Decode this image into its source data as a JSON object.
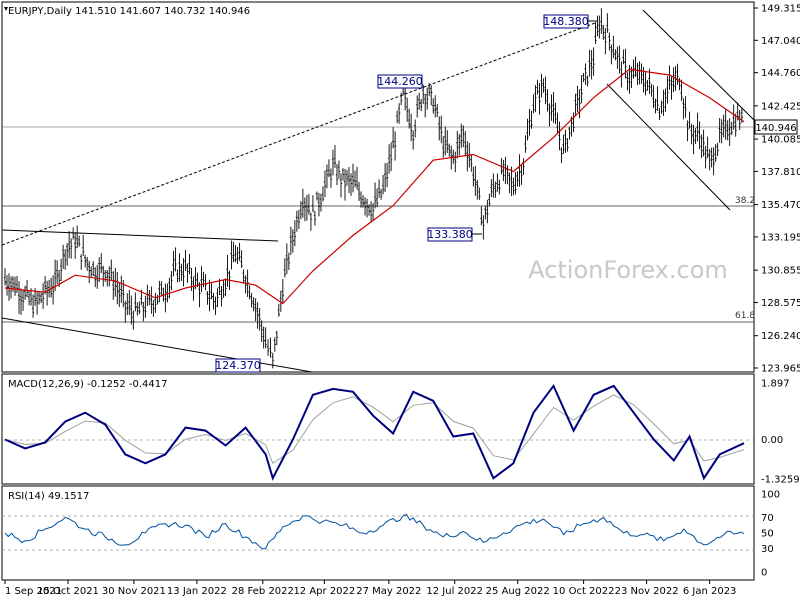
{
  "chart_data": {
    "type": "line",
    "title": "EURJPY,Daily 141.510 141.607 140.732 140.946",
    "symbol": "EURJPY",
    "timeframe": "Daily",
    "ohlc_header": "141.510 141.607 140.732 140.946",
    "watermark": "ActionForex.com",
    "last_price": "140.946",
    "price_axis_ticks": [
      "149.315",
      "147.040",
      "144.760",
      "142.425",
      "140.085",
      "137.810",
      "135.470",
      "133.195",
      "130.855",
      "128.575",
      "126.240",
      "123.965"
    ],
    "macd_axis_ticks": [
      "1.897",
      "0.00",
      "-1.3259"
    ],
    "rsi_axis_ticks": [
      "100",
      "70",
      "50",
      "30",
      "0"
    ],
    "x_axis_labels": [
      "1 Sep 2021",
      "15 Oct 2021",
      "30 Nov 2021",
      "13 Jan 2022",
      "28 Feb 2022",
      "12 Apr 2022",
      "27 May 2022",
      "12 Jul 2022",
      "25 Aug 2022",
      "10 Oct 2022",
      "23 Nov 2022",
      "6 Jan 2023"
    ],
    "annotations": {
      "high_1": "148.380",
      "high_2": "144.260",
      "low_1": "133.380",
      "low_2": "124.370",
      "fib_1": "38.2",
      "fib_2": "61.8"
    },
    "price_series": [
      {
        "x": "1 Sep 2021",
        "y": 130.2
      },
      {
        "x": "8 Sep 2021",
        "y": 129.8
      },
      {
        "x": "15 Sep 2021",
        "y": 129.0
      },
      {
        "x": "22 Sep 2021",
        "y": 128.4
      },
      {
        "x": "29 Sep 2021",
        "y": 129.3
      },
      {
        "x": "6 Oct 2021",
        "y": 129.9
      },
      {
        "x": "13 Oct 2021",
        "y": 132.3
      },
      {
        "x": "20 Oct 2021",
        "y": 133.0
      },
      {
        "x": "27 Oct 2021",
        "y": 131.6
      },
      {
        "x": "3 Nov 2021",
        "y": 130.8
      },
      {
        "x": "10 Nov 2021",
        "y": 131.0
      },
      {
        "x": "17 Nov 2021",
        "y": 129.9
      },
      {
        "x": "24 Nov 2021",
        "y": 128.4
      },
      {
        "x": "1 Dec 2021",
        "y": 127.8
      },
      {
        "x": "8 Dec 2021",
        "y": 128.4
      },
      {
        "x": "15 Dec 2021",
        "y": 128.9
      },
      {
        "x": "22 Dec 2021",
        "y": 129.4
      },
      {
        "x": "29 Dec 2021",
        "y": 130.9
      },
      {
        "x": "5 Jan 2022",
        "y": 131.0
      },
      {
        "x": "12 Jan 2022",
        "y": 130.0
      },
      {
        "x": "19 Jan 2022",
        "y": 129.5
      },
      {
        "x": "26 Jan 2022",
        "y": 128.7
      },
      {
        "x": "2 Feb 2022",
        "y": 130.2
      },
      {
        "x": "9 Feb 2022",
        "y": 132.0
      },
      {
        "x": "16 Feb 2022",
        "y": 130.5
      },
      {
        "x": "23 Feb 2022",
        "y": 128.4
      },
      {
        "x": "2 Mar 2022",
        "y": 125.8
      },
      {
        "x": "7 Mar 2022",
        "y": 124.37
      },
      {
        "x": "14 Mar 2022",
        "y": 129.8
      },
      {
        "x": "21 Mar 2022",
        "y": 133.2
      },
      {
        "x": "28 Mar 2022",
        "y": 136.0
      },
      {
        "x": "4 Apr 2022",
        "y": 134.8
      },
      {
        "x": "11 Apr 2022",
        "y": 136.5
      },
      {
        "x": "18 Apr 2022",
        "y": 138.2
      },
      {
        "x": "25 Apr 2022",
        "y": 137.2
      },
      {
        "x": "2 May 2022",
        "y": 137.0
      },
      {
        "x": "9 May 2022",
        "y": 136.0
      },
      {
        "x": "16 May 2022",
        "y": 135.2
      },
      {
        "x": "23 May 2022",
        "y": 136.5
      },
      {
        "x": "30 May 2022",
        "y": 139.5
      },
      {
        "x": "6 Jun 2022",
        "y": 143.2
      },
      {
        "x": "13 Jun 2022",
        "y": 140.8
      },
      {
        "x": "20 Jun 2022",
        "y": 143.5
      },
      {
        "x": "27 Jun 2022",
        "y": 142.8
      },
      {
        "x": "4 Jul 2022",
        "y": 139.8
      },
      {
        "x": "11 Jul 2022",
        "y": 138.7
      },
      {
        "x": "18 Jul 2022",
        "y": 140.5
      },
      {
        "x": "25 Jul 2022",
        "y": 137.8
      },
      {
        "x": "1 Aug 2022",
        "y": 134.2
      },
      {
        "x": "8 Aug 2022",
        "y": 136.7
      },
      {
        "x": "15 Aug 2022",
        "y": 137.7
      },
      {
        "x": "22 Aug 2022",
        "y": 136.8
      },
      {
        "x": "29 Aug 2022",
        "y": 138.6
      },
      {
        "x": "5 Sep 2022",
        "y": 142.6
      },
      {
        "x": "12 Sep 2022",
        "y": 143.9
      },
      {
        "x": "19 Sep 2022",
        "y": 141.8
      },
      {
        "x": "26 Sep 2022",
        "y": 139.2
      },
      {
        "x": "3 Oct 2022",
        "y": 141.6
      },
      {
        "x": "10 Oct 2022",
        "y": 144.0
      },
      {
        "x": "17 Oct 2022",
        "y": 145.8
      },
      {
        "x": "21 Oct 2022",
        "y": 148.38
      },
      {
        "x": "28 Oct 2022",
        "y": 147.2
      },
      {
        "x": "4 Nov 2022",
        "y": 145.5
      },
      {
        "x": "11 Nov 2022",
        "y": 144.5
      },
      {
        "x": "18 Nov 2022",
        "y": 144.6
      },
      {
        "x": "25 Nov 2022",
        "y": 143.8
      },
      {
        "x": "2 Dec 2022",
        "y": 142.3
      },
      {
        "x": "9 Dec 2022",
        "y": 143.7
      },
      {
        "x": "16 Dec 2022",
        "y": 144.5
      },
      {
        "x": "23 Dec 2022",
        "y": 140.6
      },
      {
        "x": "30 Dec 2022",
        "y": 140.4
      },
      {
        "x": "6 Jan 2023",
        "y": 138.4
      },
      {
        "x": "13 Jan 2023",
        "y": 140.1
      },
      {
        "x": "20 Jan 2023",
        "y": 141.1
      },
      {
        "x": "27 Jan 2023",
        "y": 141.6
      },
      {
        "x": "30 Jan 2023",
        "y": 140.946
      }
    ],
    "ma_series": [
      {
        "x": "1 Sep 2021",
        "y": 129.6
      },
      {
        "x": "29 Sep 2021",
        "y": 129.3
      },
      {
        "x": "20 Oct 2021",
        "y": 130.5
      },
      {
        "x": "17 Nov 2021",
        "y": 130.1
      },
      {
        "x": "15 Dec 2021",
        "y": 128.9
      },
      {
        "x": "5 Jan 2022",
        "y": 129.6
      },
      {
        "x": "2 Feb 2022",
        "y": 130.2
      },
      {
        "x": "23 Feb 2022",
        "y": 129.8
      },
      {
        "x": "14 Mar 2022",
        "y": 128.5
      },
      {
        "x": "4 Apr 2022",
        "y": 130.8
      },
      {
        "x": "2 May 2022",
        "y": 133.3
      },
      {
        "x": "30 May 2022",
        "y": 135.4
      },
      {
        "x": "27 Jun 2022",
        "y": 138.6
      },
      {
        "x": "25 Jul 2022",
        "y": 139.0
      },
      {
        "x": "22 Aug 2022",
        "y": 137.8
      },
      {
        "x": "19 Sep 2022",
        "y": 140.2
      },
      {
        "x": "17 Oct 2022",
        "y": 143.0
      },
      {
        "x": "11 Nov 2022",
        "y": 145.0
      },
      {
        "x": "9 Dec 2022",
        "y": 144.6
      },
      {
        "x": "6 Jan 2023",
        "y": 143.0
      },
      {
        "x": "30 Jan 2023",
        "y": 141.3
      }
    ],
    "macd_series": [
      {
        "x": "1 Sep 2021",
        "y": 0.0
      },
      {
        "x": "15 Sep 2021",
        "y": -0.3
      },
      {
        "x": "29 Sep 2021",
        "y": -0.1
      },
      {
        "x": "13 Oct 2021",
        "y": 0.6
      },
      {
        "x": "27 Oct 2021",
        "y": 0.9
      },
      {
        "x": "10 Nov 2021",
        "y": 0.5
      },
      {
        "x": "24 Nov 2021",
        "y": -0.5
      },
      {
        "x": "8 Dec 2021",
        "y": -0.8
      },
      {
        "x": "22 Dec 2021",
        "y": -0.5
      },
      {
        "x": "5 Jan 2022",
        "y": 0.4
      },
      {
        "x": "19 Jan 2022",
        "y": 0.3
      },
      {
        "x": "2 Feb 2022",
        "y": -0.2
      },
      {
        "x": "16 Feb 2022",
        "y": 0.4
      },
      {
        "x": "2 Mar 2022",
        "y": -0.5
      },
      {
        "x": "7 Mar 2022",
        "y": -1.3
      },
      {
        "x": "21 Mar 2022",
        "y": 0.0
      },
      {
        "x": "4 Apr 2022",
        "y": 1.5
      },
      {
        "x": "18 Apr 2022",
        "y": 1.7
      },
      {
        "x": "2 May 2022",
        "y": 1.6
      },
      {
        "x": "16 May 2022",
        "y": 0.8
      },
      {
        "x": "30 May 2022",
        "y": 0.2
      },
      {
        "x": "13 Jun 2022",
        "y": 1.6
      },
      {
        "x": "27 Jun 2022",
        "y": 1.3
      },
      {
        "x": "11 Jul 2022",
        "y": 0.1
      },
      {
        "x": "25 Jul 2022",
        "y": 0.2
      },
      {
        "x": "8 Aug 2022",
        "y": -1.3
      },
      {
        "x": "22 Aug 2022",
        "y": -0.8
      },
      {
        "x": "5 Sep 2022",
        "y": 0.9
      },
      {
        "x": "19 Sep 2022",
        "y": 1.8
      },
      {
        "x": "3 Oct 2022",
        "y": 0.3
      },
      {
        "x": "17 Oct 2022",
        "y": 1.5
      },
      {
        "x": "31 Oct 2022",
        "y": 1.8
      },
      {
        "x": "14 Nov 2022",
        "y": 0.9
      },
      {
        "x": "28 Nov 2022",
        "y": 0.0
      },
      {
        "x": "12 Dec 2022",
        "y": -0.7
      },
      {
        "x": "23 Dec 2022",
        "y": 0.1
      },
      {
        "x": "2 Jan 2023",
        "y": -1.3
      },
      {
        "x": "13 Jan 2023",
        "y": -0.5
      },
      {
        "x": "30 Jan 2023",
        "y": -0.1252
      }
    ],
    "rsi_series": [
      {
        "x": "1 Sep 2021",
        "y": 50
      },
      {
        "x": "15 Sep 2021",
        "y": 40
      },
      {
        "x": "29 Sep 2021",
        "y": 55
      },
      {
        "x": "13 Oct 2021",
        "y": 70
      },
      {
        "x": "27 Oct 2021",
        "y": 55
      },
      {
        "x": "10 Nov 2021",
        "y": 45
      },
      {
        "x": "24 Nov 2021",
        "y": 35
      },
      {
        "x": "8 Dec 2021",
        "y": 50
      },
      {
        "x": "22 Dec 2021",
        "y": 62
      },
      {
        "x": "5 Jan 2022",
        "y": 60
      },
      {
        "x": "19 Jan 2022",
        "y": 45
      },
      {
        "x": "2 Feb 2022",
        "y": 62
      },
      {
        "x": "16 Feb 2022",
        "y": 45
      },
      {
        "x": "2 Mar 2022",
        "y": 30
      },
      {
        "x": "14 Mar 2022",
        "y": 58
      },
      {
        "x": "28 Mar 2022",
        "y": 72
      },
      {
        "x": "11 Apr 2022",
        "y": 65
      },
      {
        "x": "25 Apr 2022",
        "y": 60
      },
      {
        "x": "9 May 2022",
        "y": 50
      },
      {
        "x": "23 May 2022",
        "y": 60
      },
      {
        "x": "6 Jun 2022",
        "y": 72
      },
      {
        "x": "20 Jun 2022",
        "y": 60
      },
      {
        "x": "4 Jul 2022",
        "y": 45
      },
      {
        "x": "18 Jul 2022",
        "y": 52
      },
      {
        "x": "1 Aug 2022",
        "y": 38
      },
      {
        "x": "15 Aug 2022",
        "y": 50
      },
      {
        "x": "29 Aug 2022",
        "y": 62
      },
      {
        "x": "12 Sep 2022",
        "y": 68
      },
      {
        "x": "26 Sep 2022",
        "y": 48
      },
      {
        "x": "10 Oct 2022",
        "y": 62
      },
      {
        "x": "24 Oct 2022",
        "y": 70
      },
      {
        "x": "7 Nov 2022",
        "y": 50
      },
      {
        "x": "21 Nov 2022",
        "y": 48
      },
      {
        "x": "5 Dec 2022",
        "y": 40
      },
      {
        "x": "19 Dec 2022",
        "y": 55
      },
      {
        "x": "2 Jan 2023",
        "y": 35
      },
      {
        "x": "16 Jan 2023",
        "y": 48
      },
      {
        "x": "30 Jan 2023",
        "y": 49.15
      }
    ],
    "macd_label": "MACD(12,26,9) -0.1252 -0.4417",
    "rsi_label": "RSI(14) 49.1517",
    "price_range": [
      123.965,
      149.315
    ],
    "macd_range": [
      -1.3259,
      1.897
    ],
    "rsi_range": [
      0,
      100
    ],
    "colors": {
      "price": "#000000",
      "ma": "#cc0000",
      "macd": "#000080",
      "signal": "#a0a0a0",
      "rsi": "#0050a0",
      "panel_border": "#000000",
      "watermark": "#c8c8c8"
    }
  }
}
